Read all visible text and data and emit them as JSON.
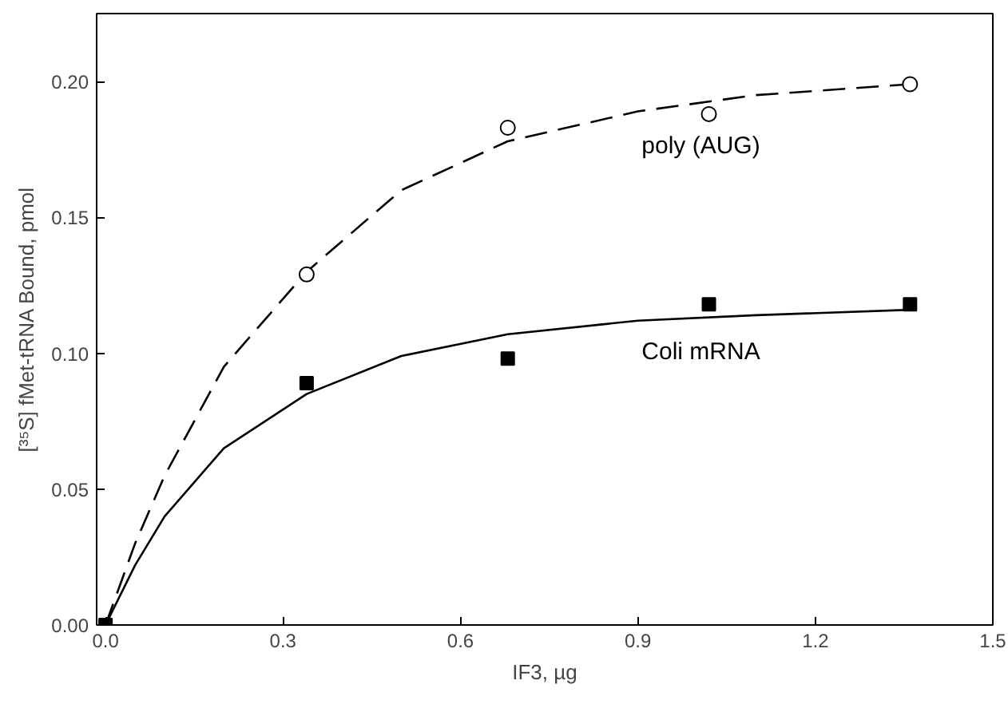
{
  "chart_data": {
    "type": "scatter",
    "xlabel": "IF3, µg",
    "ylabel": "[³⁵S] fMet-tRNA Bound, pmol",
    "xlim": [
      -0.015,
      1.5
    ],
    "ylim": [
      0,
      0.225
    ],
    "xticks": [
      {
        "value": 0,
        "label": "0.0"
      },
      {
        "value": 0.3,
        "label": "0.3"
      },
      {
        "value": 0.6,
        "label": "0.6"
      },
      {
        "value": 0.9,
        "label": "0.9"
      },
      {
        "value": 1.2,
        "label": "1.2"
      },
      {
        "value": 1.5,
        "label": "1.5"
      }
    ],
    "yticks": [
      {
        "value": 0,
        "label": "0.00"
      },
      {
        "value": 0.05,
        "label": "0.05"
      },
      {
        "value": 0.1,
        "label": "0.10"
      },
      {
        "value": 0.15,
        "label": "0.15"
      },
      {
        "value": 0.2,
        "label": "0.20"
      }
    ],
    "grid": false,
    "legend": false,
    "series": [
      {
        "type": "line",
        "line_style": "dashed",
        "color": "#000000",
        "x": [
          0,
          0.05,
          0.1,
          0.2,
          0.34,
          0.5,
          0.68,
          0.9,
          1.1,
          1.36
        ],
        "values": [
          0,
          0.03,
          0.055,
          0.095,
          0.13,
          0.16,
          0.178,
          0.189,
          0.195,
          0.199
        ]
      },
      {
        "type": "line",
        "line_style": "solid",
        "color": "#000000",
        "x": [
          0,
          0.05,
          0.1,
          0.2,
          0.34,
          0.5,
          0.68,
          0.9,
          1.1,
          1.36
        ],
        "values": [
          0,
          0.022,
          0.04,
          0.065,
          0.085,
          0.099,
          0.107,
          0.112,
          0.114,
          0.116
        ]
      },
      {
        "name": "poly (AUG)",
        "marker": "circle",
        "color": "#000000",
        "x": [
          0.34,
          0.68,
          1.02,
          1.36
        ],
        "values": [
          0.129,
          0.183,
          0.188,
          0.199
        ]
      },
      {
        "name": "Coli mRNA",
        "marker": "square",
        "color": "#000000",
        "x": [
          0,
          0.34,
          0.68,
          1.02,
          1.36
        ],
        "values": [
          0,
          0.089,
          0.098,
          0.118,
          0.118
        ]
      }
    ]
  }
}
